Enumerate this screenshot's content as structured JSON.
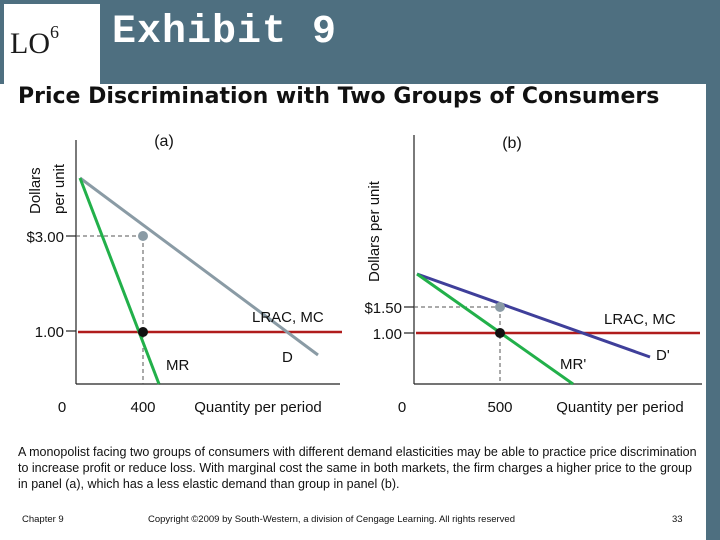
{
  "header": {
    "lo_label": "LO",
    "lo_number": "6",
    "exhibit_title": "Exhibit 9",
    "subtitle": "Price Discrimination with Two Groups of Consumers"
  },
  "panel_a": {
    "label": "(a)",
    "y_axis_label_line1": "Dollars",
    "y_axis_label_line2": "per unit",
    "x_axis_label": "Quantity  per period",
    "price_tick": "$3.00",
    "mc_tick": "1.00",
    "origin": "0",
    "quantity_tick": "400",
    "cost_label": "LRAC, MC",
    "mr_label": "MR",
    "demand_label": "D"
  },
  "panel_b": {
    "label": "(b)",
    "y_axis_label": "Dollars per unit",
    "x_axis_label": "Quantity per period",
    "price_tick": "$1.50",
    "mc_tick": "1.00",
    "origin": "0",
    "quantity_tick": "500",
    "cost_label": "LRAC, MC",
    "mr_label": "MR'",
    "demand_label": "D'"
  },
  "caption": "A monopolist facing two groups of consumers with different demand elasticities may be able to practice price discrimination to increase profit or reduce loss. With marginal cost the same in both markets, the firm charges a higher price to the group in panel (a), which has a less elastic demand than group in panel (b).",
  "footer": {
    "chapter": "Chapter 9",
    "copyright": "Copyright ©2009 by South-Western, a division of Cengage Learning.  All rights reserved",
    "page": "33"
  },
  "colors": {
    "header": "#4e6f80",
    "demand_a": "#8a9ba5",
    "demand_b": "#3f3f9a",
    "marginal_revenue": "#22b04a",
    "marginal_cost": "#b01c1c"
  }
}
